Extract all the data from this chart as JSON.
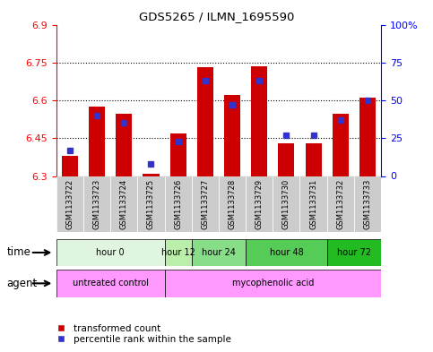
{
  "title": "GDS5265 / ILMN_1695590",
  "samples": [
    "GSM1133722",
    "GSM1133723",
    "GSM1133724",
    "GSM1133725",
    "GSM1133726",
    "GSM1133727",
    "GSM1133728",
    "GSM1133729",
    "GSM1133730",
    "GSM1133731",
    "GSM1133732",
    "GSM1133733"
  ],
  "transformed_count": [
    6.38,
    6.575,
    6.545,
    6.31,
    6.47,
    6.73,
    6.62,
    6.735,
    6.43,
    6.43,
    6.545,
    6.61
  ],
  "percentile_rank": [
    17,
    40,
    35,
    8,
    23,
    63,
    47,
    63,
    27,
    27,
    37,
    50
  ],
  "y_min": 6.3,
  "y_max": 6.9,
  "y_ticks": [
    6.3,
    6.45,
    6.6,
    6.75,
    6.9
  ],
  "y_tick_labels": [
    "6.3",
    "6.45",
    "6.6",
    "6.75",
    "6.9"
  ],
  "y2_ticks": [
    0,
    25,
    50,
    75,
    100
  ],
  "y2_tick_labels": [
    "0",
    "25",
    "50",
    "75",
    "100%"
  ],
  "bar_color": "#cc0000",
  "dot_color": "#3333cc",
  "time_group_data": [
    {
      "label": "hour 0",
      "start": 0,
      "end": 4,
      "color": "#e0f5e0"
    },
    {
      "label": "hour 12",
      "start": 4,
      "end": 5,
      "color": "#bbeeaa"
    },
    {
      "label": "hour 24",
      "start": 5,
      "end": 7,
      "color": "#88dd88"
    },
    {
      "label": "hour 48",
      "start": 7,
      "end": 10,
      "color": "#55cc55"
    },
    {
      "label": "hour 72",
      "start": 10,
      "end": 12,
      "color": "#22bb22"
    }
  ],
  "agent_group_data": [
    {
      "label": "untreated control",
      "start": 0,
      "end": 4,
      "color": "#ff99ff"
    },
    {
      "label": "mycophenolic acid",
      "start": 4,
      "end": 12,
      "color": "#ff99ff"
    }
  ],
  "legend_red": "transformed count",
  "legend_blue": "percentile rank within the sample",
  "time_label": "time",
  "agent_label": "agent",
  "xtick_bg_color": "#cccccc"
}
